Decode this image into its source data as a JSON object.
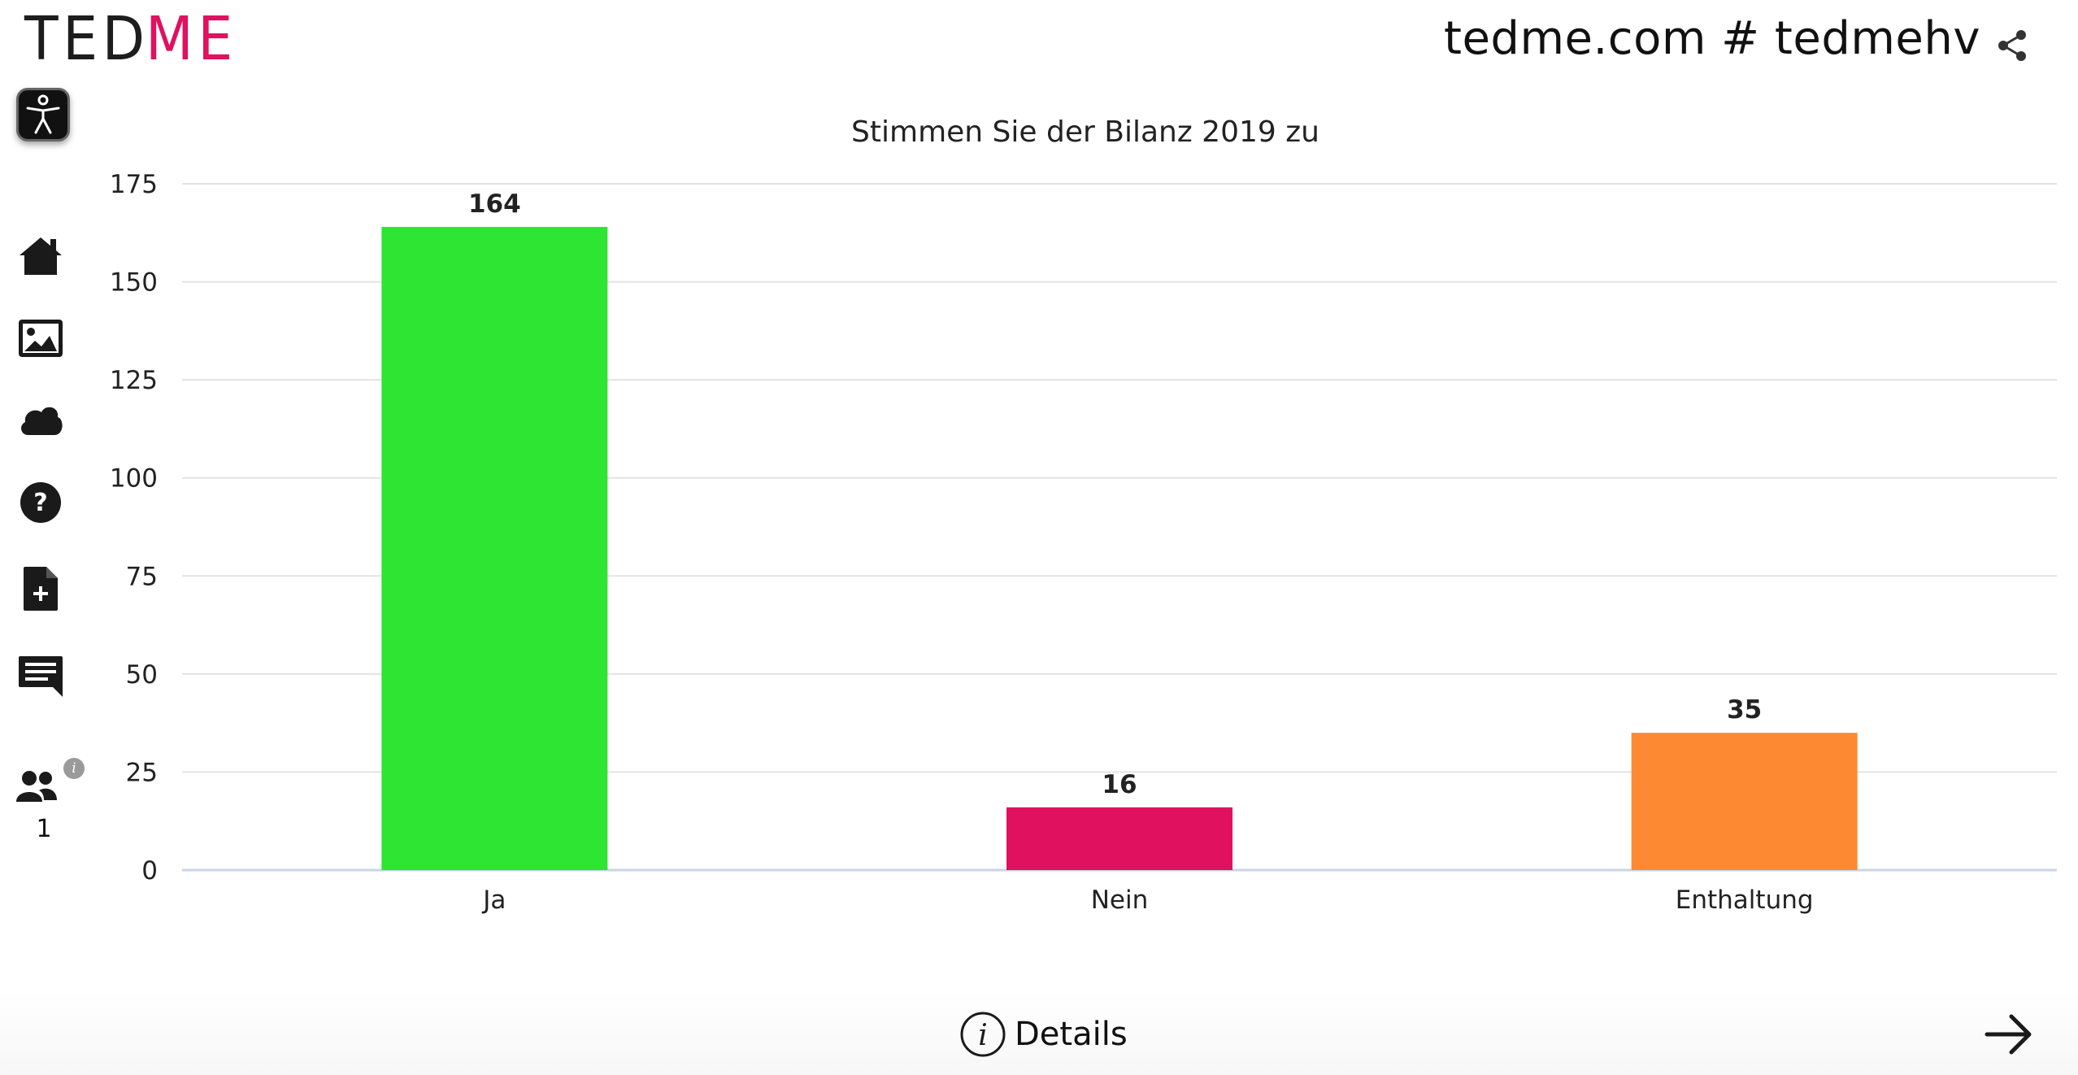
{
  "header": {
    "logo_left": "TED",
    "logo_right": "ME",
    "site_title": "tedme.com # tedmehv"
  },
  "sidebar": {
    "items": [
      {
        "icon": "home-icon"
      },
      {
        "icon": "image-icon"
      },
      {
        "icon": "cloud-icon"
      },
      {
        "icon": "help-icon"
      },
      {
        "icon": "add-document-icon"
      },
      {
        "icon": "comment-icon"
      }
    ],
    "participants_count": "1",
    "info_glyph": "i"
  },
  "chart_data": {
    "type": "bar",
    "title": "Stimmen Sie der Bilanz 2019 zu",
    "categories": [
      "Ja",
      "Nein",
      "Enthaltung"
    ],
    "values": [
      164,
      16,
      35
    ],
    "colors": [
      "#2de532",
      "#e0115f",
      "#fd8a33"
    ],
    "ylim": [
      0,
      175
    ],
    "yticks": [
      "0",
      "25",
      "50",
      "75",
      "100",
      "125",
      "150",
      "175"
    ],
    "grid": true
  },
  "footer": {
    "details_label": "Details"
  },
  "colors": {
    "brand_accent": "#e0115f",
    "text": "#111111",
    "gridline": "#e3e3e3"
  }
}
